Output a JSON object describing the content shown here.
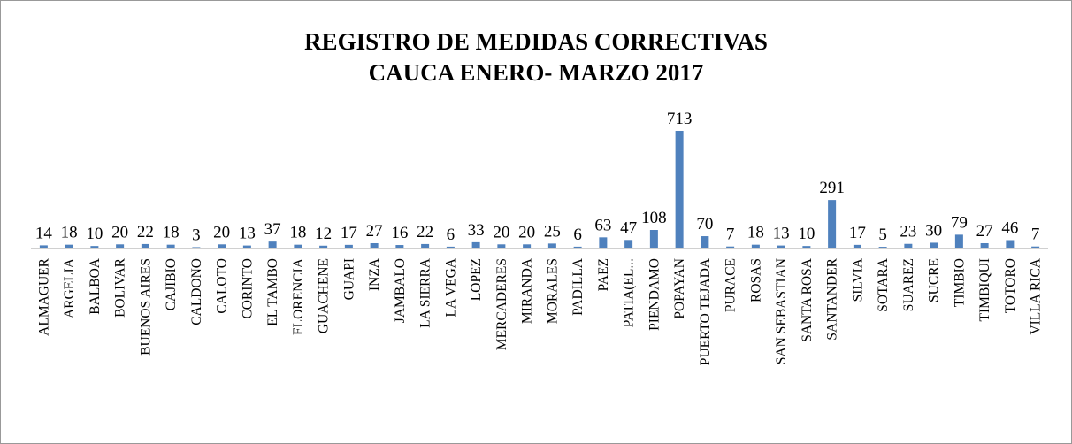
{
  "chart_data": {
    "type": "bar",
    "title": [
      "REGISTRO DE MEDIDAS CORRECTIVAS",
      "CAUCA ENERO- MARZO 2017"
    ],
    "color": "#4f81bd",
    "categories": [
      "ALMAGUER",
      "ARGELIA",
      "BALBOA",
      "BOLIVAR",
      "BUENOS AIRES",
      "CAJIBIO",
      "CALDONO",
      "CALOTO",
      "CORINTO",
      "EL TAMBO",
      "FLORENCIA",
      "GUACHENE",
      "GUAPI",
      "INZA",
      "JAMBALO",
      "LA SIERRA",
      "LA VEGA",
      "LOPEZ",
      "MERCADERES",
      "MIRANDA",
      "MORALES",
      "PADILLA",
      "PAEZ",
      "PATIA(EL...",
      "PIENDAMO",
      "POPAYAN",
      "PUERTO TEJADA",
      "PURACE",
      "ROSAS",
      "SAN SEBASTIAN",
      "SANTA ROSA",
      "SANTANDER",
      "SILVIA",
      "SOTARA",
      "SUAREZ",
      "SUCRE",
      "TIMBIO",
      "TIMBIQUI",
      "TOTORO",
      "VILLA RICA"
    ],
    "values": [
      14,
      18,
      10,
      20,
      22,
      18,
      3,
      20,
      13,
      37,
      18,
      12,
      17,
      27,
      16,
      22,
      6,
      33,
      20,
      20,
      25,
      6,
      63,
      47,
      108,
      713,
      70,
      7,
      18,
      13,
      10,
      291,
      17,
      5,
      23,
      30,
      79,
      27,
      46,
      7
    ]
  }
}
